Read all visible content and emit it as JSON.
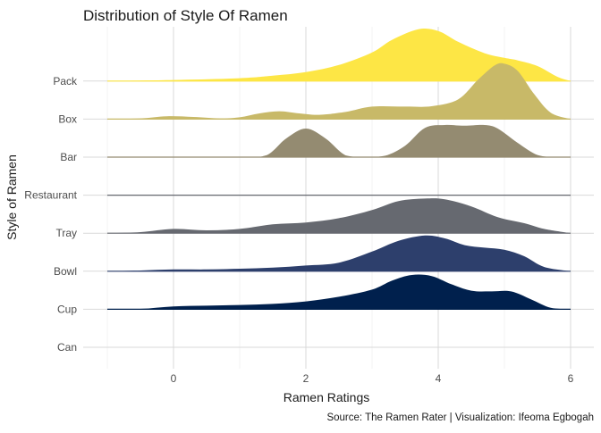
{
  "chart_data": {
    "type": "ridgeline",
    "title": "Distribution of Style Of Ramen",
    "xlabel": "Ramen Ratings",
    "ylabel": "Style of Ramen",
    "caption": "Source: The Ramen Rater | Visualization: Ifeoma Egbogah",
    "xlim": [
      -1.0,
      6.0
    ],
    "x_ticks": [
      0,
      2,
      4,
      6
    ],
    "x_tick_labels": [
      "0",
      "2",
      "4",
      "6"
    ],
    "grid": true,
    "legend": "none",
    "categories": [
      "Can",
      "Cup",
      "Bowl",
      "Tray",
      "Restaurant",
      "Bar",
      "Box",
      "Pack"
    ],
    "series": [
      {
        "name": "Cup",
        "color": "#00204D",
        "x": [
          -1.0,
          -0.5,
          0.0,
          0.5,
          1.0,
          1.5,
          2.0,
          2.5,
          3.0,
          3.3,
          3.6,
          3.9,
          4.2,
          4.5,
          4.8,
          5.1,
          5.4,
          5.7,
          6.0
        ],
        "y": [
          0.0,
          0.01,
          0.08,
          0.1,
          0.12,
          0.15,
          0.22,
          0.35,
          0.55,
          0.8,
          0.96,
          0.93,
          0.7,
          0.52,
          0.5,
          0.5,
          0.28,
          0.04,
          0.0
        ]
      },
      {
        "name": "Bowl",
        "color": "#2D3F6C",
        "x": [
          -1.0,
          -0.5,
          0.0,
          0.5,
          1.0,
          1.5,
          2.0,
          2.5,
          3.0,
          3.4,
          3.8,
          4.1,
          4.4,
          4.7,
          5.0,
          5.3,
          5.6,
          6.0
        ],
        "y": [
          0.0,
          0.02,
          0.05,
          0.05,
          0.07,
          0.1,
          0.16,
          0.24,
          0.55,
          0.85,
          1.0,
          0.92,
          0.73,
          0.66,
          0.6,
          0.42,
          0.12,
          0.0
        ]
      },
      {
        "name": "Tray",
        "color": "#666970",
        "x": [
          -1.0,
          -0.5,
          0.0,
          0.5,
          1.0,
          1.5,
          2.0,
          2.5,
          3.0,
          3.4,
          3.8,
          4.1,
          4.5,
          4.9,
          5.3,
          5.6,
          6.0
        ],
        "y": [
          0.0,
          0.03,
          0.12,
          0.08,
          0.12,
          0.25,
          0.3,
          0.42,
          0.65,
          0.9,
          0.97,
          0.95,
          0.75,
          0.45,
          0.28,
          0.12,
          0.0
        ]
      },
      {
        "name": "Restaurant",
        "color": "#666970",
        "x": [
          -1.0,
          6.0
        ],
        "y": [
          0.0,
          0.0
        ]
      },
      {
        "name": "Bar",
        "color": "#948B71",
        "x": [
          -1.0,
          1.0,
          1.4,
          1.7,
          2.0,
          2.3,
          2.6,
          2.9,
          3.2,
          3.5,
          3.8,
          4.1,
          4.4,
          4.7,
          4.9,
          5.2,
          5.5,
          5.8,
          6.0
        ],
        "y": [
          0.0,
          0.0,
          0.05,
          0.52,
          0.8,
          0.52,
          0.05,
          0.0,
          0.04,
          0.32,
          0.82,
          0.9,
          0.88,
          0.9,
          0.8,
          0.4,
          0.06,
          0.0,
          0.0
        ]
      },
      {
        "name": "Box",
        "color": "#C8B968",
        "x": [
          -1.0,
          -0.5,
          -0.1,
          0.3,
          0.7,
          1.0,
          1.3,
          1.6,
          1.9,
          2.2,
          2.6,
          3.0,
          3.5,
          3.9,
          4.3,
          4.6,
          4.85,
          5.0,
          5.2,
          5.45,
          5.7,
          6.0
        ],
        "y": [
          0.0,
          0.02,
          0.08,
          0.06,
          0.02,
          0.05,
          0.16,
          0.22,
          0.16,
          0.12,
          0.2,
          0.35,
          0.35,
          0.36,
          0.55,
          1.1,
          1.5,
          1.55,
          1.35,
          0.7,
          0.18,
          0.0
        ]
      },
      {
        "name": "Pack",
        "color": "#FDE645",
        "x": [
          -1.0,
          0.0,
          1.0,
          1.5,
          2.0,
          2.5,
          3.0,
          3.3,
          3.7,
          4.0,
          4.3,
          4.7,
          5.0,
          5.2,
          5.5,
          5.8,
          6.0
        ],
        "y": [
          0.0,
          0.03,
          0.08,
          0.15,
          0.25,
          0.45,
          0.8,
          1.15,
          1.45,
          1.4,
          1.1,
          0.78,
          0.65,
          0.58,
          0.42,
          0.12,
          0.0
        ]
      }
    ]
  }
}
